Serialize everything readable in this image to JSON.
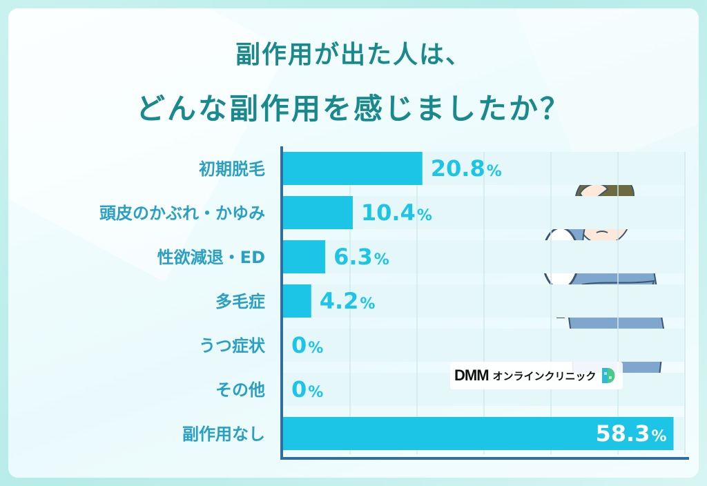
{
  "title": {
    "line1": "副作用が出た人は、",
    "line2": "どんな副作用を感じましたか？"
  },
  "logo": {
    "brand": "DMM",
    "service": "オンラインクリニック",
    "mark_icon": "dmm-d-mark-icon"
  },
  "colors": {
    "accent": "#1cc5e6",
    "title": "#19898c",
    "label": "#2a9fc4",
    "axis": "#2f6f9f",
    "track": "#e6f7fa"
  },
  "chart_data": {
    "type": "bar",
    "orientation": "horizontal",
    "categories": [
      "初期脱毛",
      "頭皮のかぶれ・かゆみ",
      "性欲減退・ED",
      "多毛症",
      "うつ症状",
      "その他",
      "副作用なし"
    ],
    "values": [
      20.8,
      10.4,
      6.3,
      4.2,
      0,
      0,
      58.3
    ],
    "value_labels": [
      "20.8",
      "10.4",
      "6.3",
      "4.2",
      "0",
      "0",
      "58.3"
    ],
    "unit": "%",
    "xlim": [
      0,
      60
    ],
    "grid": true,
    "title": "",
    "xlabel": "",
    "ylabel": ""
  }
}
